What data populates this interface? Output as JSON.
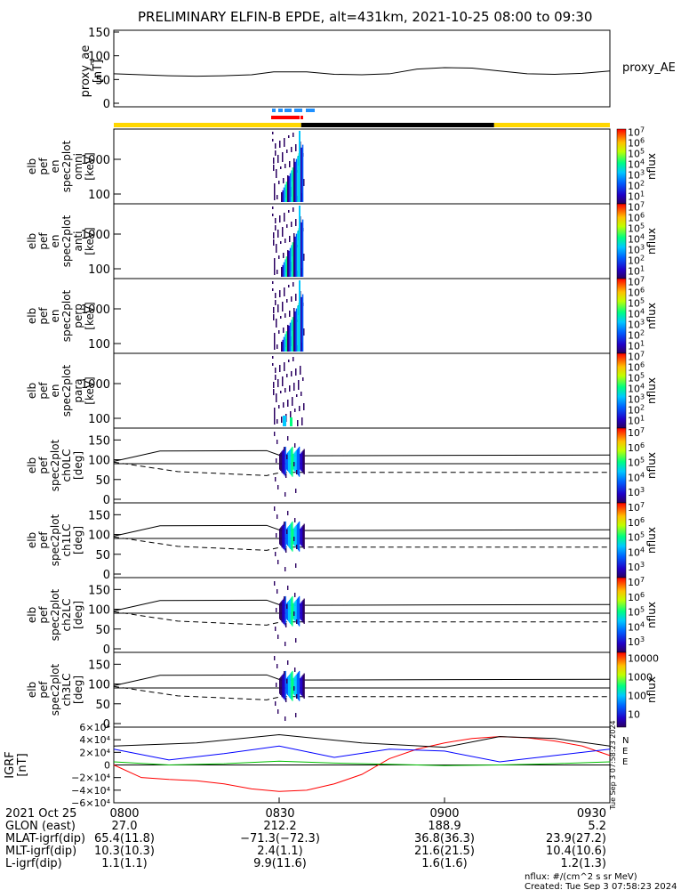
{
  "title": "PRELIMINARY ELFIN-B EPDE, alt=431km, 2021-10-25 08:00 to 09:30",
  "proxy_ae": {
    "ylabel_line1": "proxy_ae",
    "ylabel_line2": "[nT]",
    "legend": "proxy_AE",
    "yticks": [
      "150",
      "100",
      "50",
      "0"
    ],
    "ylim": [
      0,
      150
    ]
  },
  "flag_bars": {
    "science_zone_colors": [
      "#ffd700",
      "#000000",
      "#ffd700"
    ],
    "markers_blue": "#1e90ff",
    "markers_red": "#ff0000"
  },
  "energy_panels": [
    {
      "label_lines": [
        "elb",
        "pef",
        "en",
        "spec2plot",
        "omni",
        "[keV]"
      ],
      "yticks": [
        "1000",
        "100"
      ],
      "cbar_ticks": [
        "10",
        "10",
        "10",
        "10",
        "10",
        "10",
        "10"
      ],
      "cbar_label": "nflux"
    },
    {
      "label_lines": [
        "elb",
        "pef",
        "en",
        "spec2plot",
        "anti",
        "[keV]"
      ],
      "yticks": [
        "1000",
        "100"
      ],
      "cbar_ticks": [
        "10",
        "10",
        "10",
        "10",
        "10",
        "10",
        "10"
      ],
      "cbar_label": "nflux"
    },
    {
      "label_lines": [
        "elb",
        "pef",
        "en",
        "spec2plot",
        "perp",
        "[keV]"
      ],
      "yticks": [
        "1000",
        "100"
      ],
      "cbar_ticks": [
        "10",
        "10",
        "10",
        "10",
        "10",
        "10",
        "10"
      ],
      "cbar_label": "nflux"
    },
    {
      "label_lines": [
        "elb",
        "pef",
        "en",
        "spec2plot",
        "para",
        "[keV]"
      ],
      "yticks": [
        "1000",
        "100"
      ],
      "cbar_ticks": [
        "10",
        "10",
        "10",
        "10",
        "10",
        "10",
        "10"
      ],
      "cbar_label": "nflux"
    }
  ],
  "pitch_panels": [
    {
      "label_lines": [
        "elb",
        "pef",
        "spec2plot",
        "ch0LC",
        "[deg]"
      ],
      "yticks": [
        "150",
        "100",
        "50",
        "0"
      ],
      "cbar_label": "nflux"
    },
    {
      "label_lines": [
        "elb",
        "pef",
        "spec2plot",
        "ch1LC",
        "[deg]"
      ],
      "yticks": [
        "150",
        "100",
        "50",
        "0"
      ],
      "cbar_label": "nflux"
    },
    {
      "label_lines": [
        "elb",
        "pef",
        "spec2plot",
        "ch2LC",
        "[deg]"
      ],
      "yticks": [
        "150",
        "100",
        "50",
        "0"
      ],
      "cbar_label": "nflux"
    },
    {
      "label_lines": [
        "elb",
        "pef",
        "spec2plot",
        "ch3LC",
        "[deg]"
      ],
      "yticks": [
        "150",
        "100",
        "50",
        "0"
      ],
      "cbar_ticks": [
        "10000",
        "1000",
        "100",
        "10"
      ],
      "cbar_label": "nflux"
    }
  ],
  "igrf_panel": {
    "ylabel_line1": "IGRF",
    "ylabel_line2": "[nT]",
    "yticks": [
      "6×10⁴",
      "4×10⁴",
      "2×10⁴",
      "0",
      "−2×10⁴",
      "−4×10⁴",
      "−6×10⁴"
    ],
    "ylim": [
      -60000,
      60000
    ],
    "side_text": "Tue Sep  3 07:58:23 2024",
    "legend": [
      {
        "name": "N",
        "color": "#ff0000"
      },
      {
        "name": "E",
        "color": "#0000ff"
      },
      {
        "name": "E",
        "color": "#00c000"
      }
    ]
  },
  "time_axis": {
    "ticks": [
      "0800",
      "0830",
      "0900",
      "0930"
    ],
    "rows": [
      {
        "label": "2021 Oct 25",
        "values": [
          "0800",
          "0830",
          "0900",
          "0930"
        ]
      },
      {
        "label": "GLON (east)",
        "values": [
          "27.0",
          "212.2",
          "188.9",
          "5.2"
        ]
      },
      {
        "label": "MLAT-igrf(dip)",
        "values": [
          "65.4(11.8)",
          "−71.3(−72.3)",
          "36.8(36.3)",
          "23.9(27.2)"
        ]
      },
      {
        "label": "MLT-igrf(dip)",
        "values": [
          "10.3(10.3)",
          "2.4(1.1)",
          "21.6(21.5)",
          "10.4(10.6)"
        ]
      },
      {
        "label": "L-igrf(dip)",
        "values": [
          "1.1(1.1)",
          "9.9(11.6)",
          "1.6(1.6)",
          "1.2(1.3)"
        ]
      }
    ]
  },
  "footer": {
    "units": "nflux: #/(cm^2 s sr MeV)",
    "created": "Created: Tue Sep  3 07:58:23 2024"
  },
  "chart_data": {
    "type": "line",
    "title": "PRELIMINARY ELFIN-B EPDE, alt=431km, 2021-10-25 08:00 to 09:30",
    "x_range": [
      "08:00",
      "09:30"
    ],
    "series": [
      {
        "name": "proxy_AE",
        "panel": "proxy_ae",
        "x": [
          "08:00",
          "08:05",
          "08:10",
          "08:15",
          "08:20",
          "08:25",
          "08:29",
          "08:35",
          "08:40",
          "08:45",
          "08:50",
          "08:55",
          "09:00",
          "09:05",
          "09:10",
          "09:15",
          "09:20",
          "09:25",
          "09:30"
        ],
        "values": [
          62,
          60,
          58,
          57,
          58,
          60,
          66,
          66,
          61,
          60,
          62,
          72,
          75,
          74,
          68,
          62,
          61,
          63,
          68
        ]
      },
      {
        "name": "N",
        "panel": "igrf",
        "x": [
          "08:00",
          "08:05",
          "08:10",
          "08:15",
          "08:20",
          "08:25",
          "08:30",
          "08:35",
          "08:40",
          "08:45",
          "08:50",
          "08:55",
          "09:00",
          "09:05",
          "09:10",
          "09:15",
          "09:20",
          "09:25",
          "09:30"
        ],
        "values": [
          0,
          -20000,
          -23000,
          -25000,
          -30000,
          -38000,
          -42000,
          -40000,
          -30000,
          -15000,
          10000,
          25000,
          35000,
          42000,
          45000,
          43000,
          38000,
          30000,
          15000
        ]
      },
      {
        "name": "E",
        "panel": "igrf",
        "x": [
          "08:00",
          "08:10",
          "08:20",
          "08:30",
          "08:40",
          "08:50",
          "09:00",
          "09:10",
          "09:20",
          "09:30"
        ],
        "values": [
          25000,
          8000,
          18000,
          30000,
          12000,
          25000,
          22000,
          5000,
          15000,
          25000
        ]
      },
      {
        "name": "E",
        "panel": "igrf",
        "x": [
          "08:00",
          "08:10",
          "08:20",
          "08:30",
          "08:40",
          "08:50",
          "09:00",
          "09:10",
          "09:20",
          "09:30"
        ],
        "values": [
          5000,
          0,
          2000,
          6000,
          3000,
          1000,
          -1000,
          0,
          2000,
          5000
        ]
      }
    ]
  }
}
